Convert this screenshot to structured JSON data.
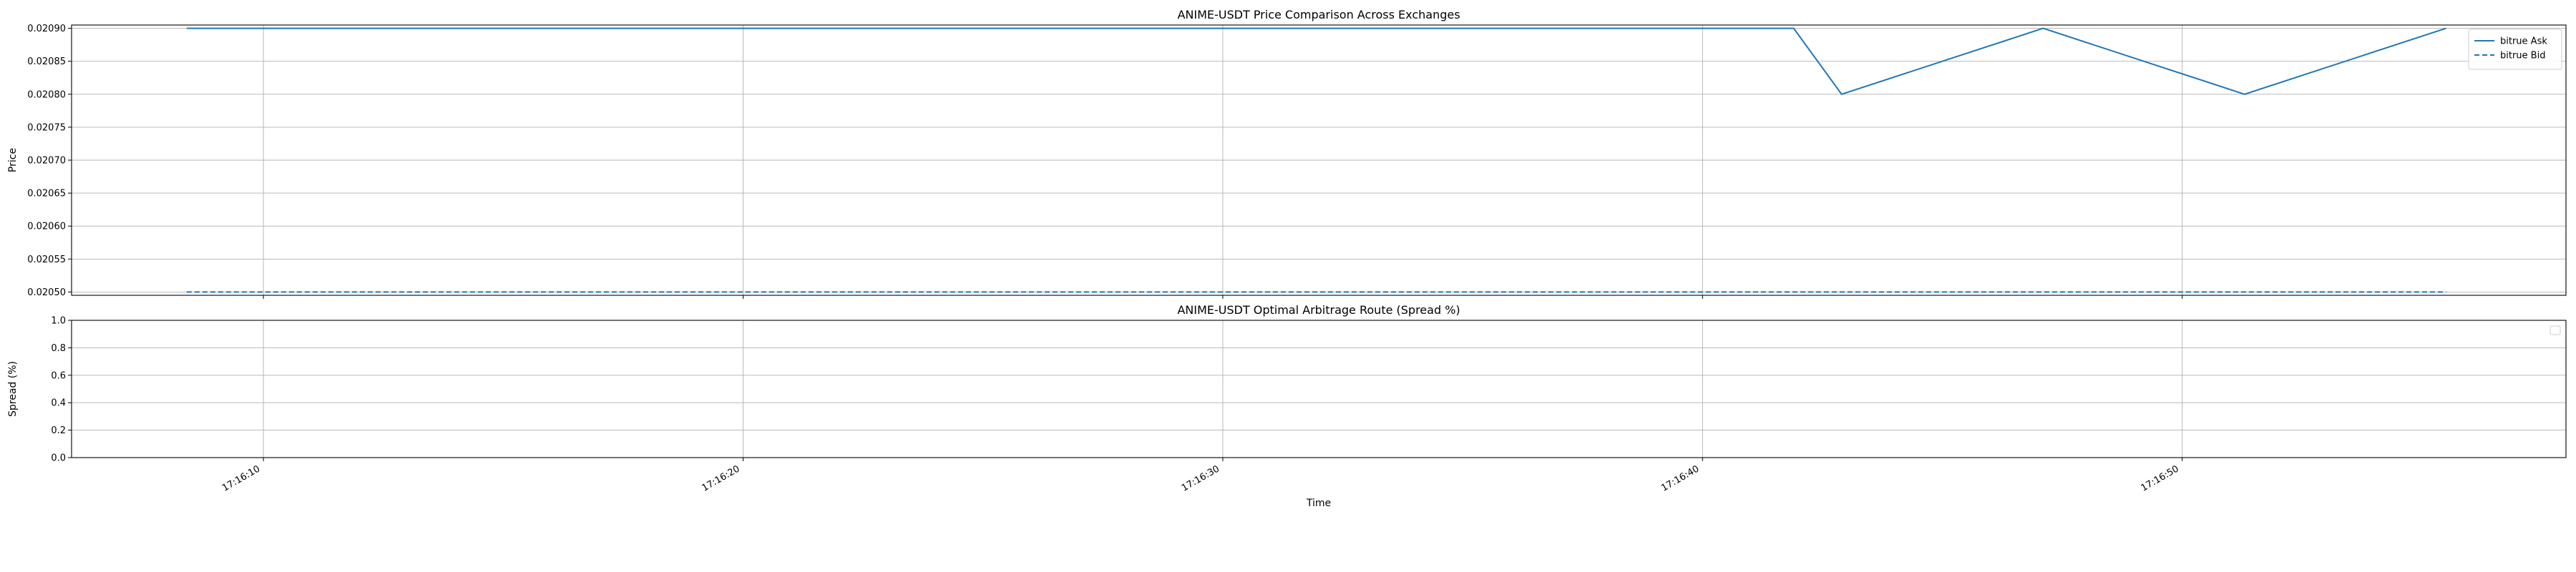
{
  "chart_data": [
    {
      "type": "line",
      "title": "ANIME-USDT Price Comparison Across Exchanges",
      "xlabel": "",
      "ylabel": "Price",
      "x_domain": [
        "17:16:06",
        "17:16:58"
      ],
      "ylim": [
        0.020495,
        0.020905
      ],
      "yticks": [
        0.0205,
        0.02055,
        0.0206,
        0.02065,
        0.0207,
        0.02075,
        0.0208,
        0.02085,
        0.0209
      ],
      "ytick_labels": [
        "0.02050",
        "0.02055",
        "0.02060",
        "0.02065",
        "0.02070",
        "0.02075",
        "0.02080",
        "0.02085",
        "0.02090"
      ],
      "xticks": [
        "17:16:10",
        "17:16:20",
        "17:16:30",
        "17:16:40",
        "17:16:50"
      ],
      "grid": true,
      "legend": "upper right",
      "series": [
        {
          "name": "bitrue Ask",
          "color": "#1f77b4",
          "linestyle": "solid",
          "x": [
            "17:16:08.4",
            "17:16:41.9",
            "17:16:42.9",
            "17:16:47.1",
            "17:16:51.3",
            "17:16:55.5"
          ],
          "y": [
            0.0209,
            0.0209,
            0.0208,
            0.0209,
            0.0208,
            0.0209
          ]
        },
        {
          "name": "bitrue Bid",
          "color": "#1f77b4",
          "linestyle": "dashed",
          "x": [
            "17:16:08.4",
            "17:16:55.5"
          ],
          "y": [
            0.0205,
            0.0205
          ]
        }
      ]
    },
    {
      "type": "line",
      "title": "ANIME-USDT Optimal Arbitrage Route (Spread %)",
      "xlabel": "Time",
      "ylabel": "Spread (%)",
      "x_domain": [
        "17:16:06",
        "17:16:58"
      ],
      "ylim": [
        0,
        1
      ],
      "yticks": [
        0,
        0.2,
        0.4,
        0.6,
        0.8,
        1
      ],
      "ytick_labels": [
        "0.0",
        "0.2",
        "0.4",
        "0.6",
        "0.8",
        "1.0"
      ],
      "xticks": [
        "17:16:10",
        "17:16:20",
        "17:16:30",
        "17:16:40",
        "17:16:50"
      ],
      "grid": true,
      "legend": "upper right",
      "series": []
    }
  ]
}
